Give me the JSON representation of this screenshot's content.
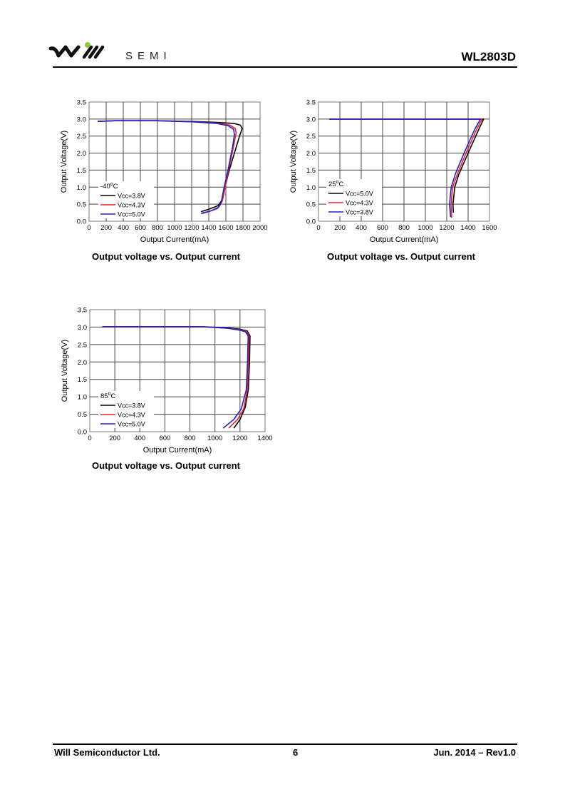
{
  "header": {
    "brand_text": "SEMI",
    "logo_text": "Will SEMI",
    "part_number": "WL2803D"
  },
  "footer": {
    "company": "Will Semiconductor Ltd.",
    "page": "6",
    "revision": "Jun. 2014 – Rev1.0"
  },
  "colors": {
    "black": "#000000",
    "red": "#e8202a",
    "blue": "#2020d0",
    "logo_green": "#8cc63f"
  },
  "chart_data": [
    {
      "type": "line",
      "caption": "Output voltage vs. Output current",
      "xlabel": "Output Current(mA)",
      "ylabel": "Output Voltage(V)",
      "xlim": [
        0,
        2000
      ],
      "ylim": [
        0,
        3.5
      ],
      "grid": true,
      "xticks": [
        "0",
        "200",
        "400",
        "600",
        "800",
        "1000",
        "1200",
        "1400",
        "1600",
        "1800",
        "2000"
      ],
      "yticks": [
        "0.0",
        "0.5",
        "1.0",
        "1.5",
        "2.0",
        "2.5",
        "3.0",
        "3.5"
      ],
      "legend_title": "-40",
      "legend_unit": "C",
      "legend": "bottom-left",
      "series": [
        {
          "name": "Vcc=3.8V",
          "color": "#000000",
          "points": [
            [
              100,
              2.93
            ],
            [
              300,
              2.95
            ],
            [
              800,
              2.95
            ],
            [
              1200,
              2.93
            ],
            [
              1500,
              2.9
            ],
            [
              1700,
              2.87
            ],
            [
              1770,
              2.82
            ],
            [
              1790,
              2.72
            ],
            [
              1760,
              2.5
            ],
            [
              1700,
              2.0
            ],
            [
              1640,
              1.5
            ],
            [
              1590,
              1.0
            ],
            [
              1555,
              0.62
            ],
            [
              1510,
              0.46
            ],
            [
              1400,
              0.35
            ],
            [
              1310,
              0.28
            ]
          ]
        },
        {
          "name": "Vcc=4.3V",
          "color": "#e8202a",
          "points": [
            [
              100,
              2.93
            ],
            [
              300,
              2.95
            ],
            [
              800,
              2.95
            ],
            [
              1200,
              2.92
            ],
            [
              1500,
              2.88
            ],
            [
              1650,
              2.82
            ],
            [
              1710,
              2.72
            ],
            [
              1720,
              2.6
            ],
            [
              1690,
              2.2
            ],
            [
              1640,
              1.6
            ],
            [
              1600,
              1.1
            ],
            [
              1560,
              0.6
            ],
            [
              1520,
              0.42
            ],
            [
              1420,
              0.3
            ],
            [
              1320,
              0.24
            ]
          ]
        },
        {
          "name": "Vcc=5.0V",
          "color": "#2020d0",
          "points": [
            [
              100,
              2.93
            ],
            [
              300,
              2.95
            ],
            [
              800,
              2.95
            ],
            [
              1200,
              2.92
            ],
            [
              1500,
              2.87
            ],
            [
              1630,
              2.8
            ],
            [
              1690,
              2.7
            ],
            [
              1700,
              2.55
            ],
            [
              1680,
              2.2
            ],
            [
              1625,
              1.5
            ],
            [
              1580,
              1.0
            ],
            [
              1545,
              0.55
            ],
            [
              1505,
              0.38
            ],
            [
              1400,
              0.28
            ],
            [
              1310,
              0.22
            ]
          ]
        }
      ]
    },
    {
      "type": "line",
      "caption": "Output voltage vs. Output current",
      "xlabel": "Output Current(mA)",
      "ylabel": "Output Voltage(V)",
      "xlim": [
        0,
        1600
      ],
      "ylim": [
        0,
        3.5
      ],
      "grid": true,
      "xticks": [
        "0",
        "200",
        "400",
        "600",
        "800",
        "1000",
        "1200",
        "1400",
        "1600"
      ],
      "yticks": [
        "0.0",
        "0.5",
        "1.0",
        "1.5",
        "2.0",
        "2.5",
        "3.0",
        "3.5"
      ],
      "legend_title": "25",
      "legend_unit": "C",
      "legend": "bottom-left",
      "series": [
        {
          "name": "Vcc=5.0V",
          "color": "#000000",
          "points": [
            [
              100,
              3.0
            ],
            [
              1545,
              3.0
            ],
            [
              1500,
              2.7
            ],
            [
              1400,
              2.0
            ],
            [
              1310,
              1.35
            ],
            [
              1275,
              1.0
            ],
            [
              1258,
              0.5
            ],
            [
              1262,
              0.25
            ]
          ]
        },
        {
          "name": "Vcc=4.3V",
          "color": "#e8202a",
          "points": [
            [
              100,
              3.0
            ],
            [
              1530,
              3.0
            ],
            [
              1480,
              2.7
            ],
            [
              1380,
              2.0
            ],
            [
              1295,
              1.35
            ],
            [
              1255,
              1.0
            ],
            [
              1240,
              0.5
            ],
            [
              1246,
              0.1
            ]
          ]
        },
        {
          "name": "Vcc=3.8V",
          "color": "#2020d0",
          "points": [
            [
              100,
              3.0
            ],
            [
              1515,
              3.0
            ],
            [
              1462,
              2.7
            ],
            [
              1362,
              2.0
            ],
            [
              1282,
              1.4
            ],
            [
              1242,
              1.0
            ],
            [
              1226,
              0.5
            ],
            [
              1236,
              0.12
            ]
          ]
        }
      ]
    },
    {
      "type": "line",
      "caption": "Output voltage vs. Output current",
      "xlabel": "Output Current(mA)",
      "ylabel": "Output Voltage(V)",
      "xlim": [
        0,
        1400
      ],
      "ylim": [
        0,
        3.5
      ],
      "grid": true,
      "xticks": [
        "0",
        "200",
        "400",
        "600",
        "800",
        "1000",
        "1200",
        "1400"
      ],
      "yticks": [
        "0.0",
        "0.5",
        "1.0",
        "1.5",
        "2.0",
        "2.5",
        "3.0",
        "3.5"
      ],
      "legend_title": "85",
      "legend_unit": "C",
      "legend": "bottom-left",
      "series": [
        {
          "name": "Vcc=3.8V",
          "color": "#000000",
          "points": [
            [
              100,
              3.01
            ],
            [
              900,
              3.01
            ],
            [
              1100,
              2.98
            ],
            [
              1200,
              2.94
            ],
            [
              1258,
              2.89
            ],
            [
              1280,
              2.75
            ],
            [
              1276,
              2.0
            ],
            [
              1266,
              1.2
            ],
            [
              1242,
              0.7
            ],
            [
              1200,
              0.35
            ],
            [
              1150,
              0.1
            ]
          ]
        },
        {
          "name": "Vcc=4.3V",
          "color": "#e8202a",
          "points": [
            [
              100,
              3.01
            ],
            [
              900,
              3.01
            ],
            [
              1100,
              2.97
            ],
            [
              1200,
              2.92
            ],
            [
              1250,
              2.88
            ],
            [
              1272,
              2.75
            ],
            [
              1268,
              2.0
            ],
            [
              1258,
              1.2
            ],
            [
              1230,
              0.65
            ],
            [
              1180,
              0.35
            ],
            [
              1110,
              0.1
            ]
          ]
        },
        {
          "name": "Vcc=5.0V",
          "color": "#2020d0",
          "points": [
            [
              100,
              3.01
            ],
            [
              900,
              3.01
            ],
            [
              1100,
              2.97
            ],
            [
              1200,
              2.91
            ],
            [
              1242,
              2.87
            ],
            [
              1265,
              2.75
            ],
            [
              1260,
              2.0
            ],
            [
              1250,
              1.2
            ],
            [
              1210,
              0.65
            ],
            [
              1150,
              0.35
            ],
            [
              1065,
              0.1
            ]
          ]
        }
      ]
    }
  ]
}
